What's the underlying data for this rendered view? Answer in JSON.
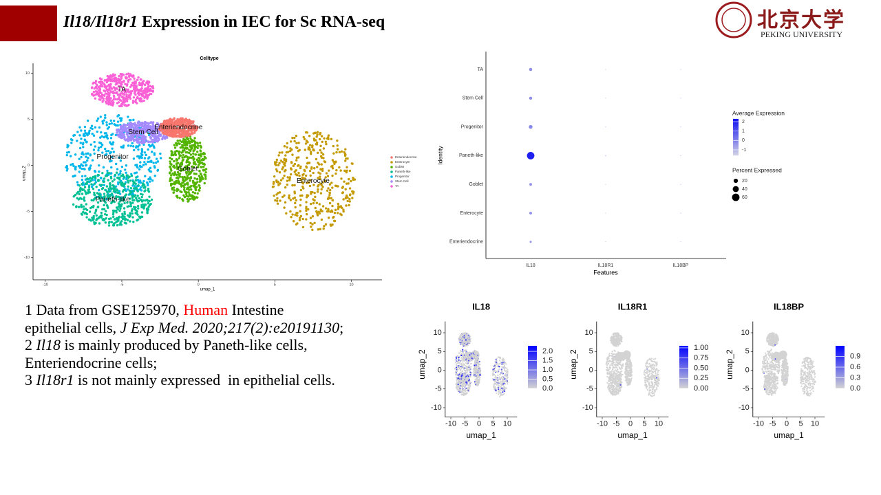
{
  "header": {
    "title": [
      {
        "text": "Il18",
        "italic": true
      },
      {
        "text": "/",
        "italic": true
      },
      {
        "text": "Il18r1",
        "italic": true
      },
      {
        "text": " Expression in IEC for Sc RNA-seq"
      }
    ],
    "logo_cn": "北京大学",
    "logo_en": "PEKING UNIVERSITY"
  },
  "notes": [
    [
      {
        "text": "1 Data from GSE125970, "
      },
      {
        "text": "Human",
        "color": "#ff0000"
      },
      {
        "text": " Intestine"
      }
    ],
    [
      {
        "text": "epithelial cells, "
      },
      {
        "text": "J Exp Med. 2020;217(2):e20191130",
        "italic": true
      },
      {
        "text": ";"
      }
    ],
    [
      {
        "text": "2 "
      },
      {
        "text": "Il18",
        "italic": true
      },
      {
        "text": " is mainly produced by Paneth-like cells,"
      }
    ],
    [
      {
        "text": "Enteriendocrine cells;"
      }
    ],
    [
      {
        "text": "3 "
      },
      {
        "text": "Il18r1",
        "italic": true
      },
      {
        "text": " is not mainly expressed  in epithelial cells."
      }
    ]
  ],
  "chart_data": [
    {
      "type": "umap",
      "title": "Celltype",
      "x_label": "umap_1",
      "y_label": "umap_2",
      "xlim": [
        -10.8,
        12.0
      ],
      "ylim": [
        -12.4,
        10.7
      ],
      "xticks": [
        -10,
        -5,
        0,
        5,
        10
      ],
      "yticks": [
        10,
        5,
        0,
        -5,
        -10
      ],
      "series": [
        {
          "name": "Enteriendocrine",
          "color": "#f8766d",
          "x": [
            -1.3
          ],
          "y": [
            4.1
          ]
        },
        {
          "name": "Enterocyte",
          "color": "#c49a00",
          "x": [
            7.5
          ],
          "y": [
            -1.7
          ]
        },
        {
          "name": "Goblet",
          "color": "#53b400",
          "x": [
            -0.7
          ],
          "y": [
            -0.4
          ]
        },
        {
          "name": "Paneth-like",
          "color": "#00c094",
          "x": [
            -5.6
          ],
          "y": [
            -3.7
          ]
        },
        {
          "name": "Progenitor",
          "color": "#00b6eb",
          "x": [
            -5.6
          ],
          "y": [
            0.9
          ]
        },
        {
          "name": "Stem Cell",
          "color": "#a58aff",
          "x": [
            -3.6
          ],
          "y": [
            3.6
          ]
        },
        {
          "name": "TA",
          "color": "#fb61d7",
          "x": [
            -5.0
          ],
          "y": [
            8.2
          ]
        }
      ]
    },
    {
      "type": "dotplot",
      "x_label": "Features",
      "y_label": "Identity",
      "categories": [
        "IL18",
        "IL18R1",
        "IL18BP"
      ],
      "identities": [
        "TA",
        "Stem Cell",
        "Progenitor",
        "Paneth-like",
        "Goblet",
        "Enterocyte",
        "Enteriendocrine"
      ],
      "avg_expression": [
        [
          -0.2,
          -0.4,
          -0.4
        ],
        [
          -0.2,
          -0.4,
          -0.4
        ],
        [
          -0.1,
          -0.4,
          -0.4
        ],
        [
          2.0,
          -0.4,
          -0.4
        ],
        [
          -0.3,
          -0.4,
          -0.4
        ],
        [
          -0.3,
          -0.4,
          -0.4
        ],
        [
          -0.4,
          -0.4,
          -0.4
        ]
      ],
      "pct_expressed": [
        [
          10,
          0.5,
          0.5
        ],
        [
          10,
          0.5,
          0.5
        ],
        [
          15,
          0.5,
          0.5
        ],
        [
          60,
          0.8,
          0.5
        ],
        [
          8,
          0.5,
          0.5
        ],
        [
          8,
          0.5,
          0.5
        ],
        [
          5,
          0.5,
          0.5
        ]
      ],
      "color_title": "Average Expression",
      "color_lim": [
        -1.6,
        2.3
      ],
      "color_ticks": [
        2,
        1,
        0,
        -1
      ],
      "size_title": "Percent Expressed",
      "size_ticks": [
        20,
        40,
        60
      ],
      "low_color": "#d3d3e6",
      "high_color": "#1010f0"
    },
    {
      "type": "feature",
      "title": "IL18",
      "x_label": "umap_1",
      "y_label": "umap_2",
      "xlim": [
        -12,
        13.5
      ],
      "ylim": [
        -12.5,
        13
      ],
      "xticks": [
        -10,
        -5,
        0,
        5,
        10
      ],
      "yticks": [
        10,
        5,
        0,
        -5,
        -10
      ],
      "color_lim": [
        0,
        2.3
      ],
      "color_ticks": [
        {
          "value": 2,
          "label": "2.0"
        },
        {
          "value": 1.5,
          "label": "1.5"
        },
        {
          "value": 1,
          "label": "1.0"
        },
        {
          "value": 0.5,
          "label": "0.5"
        },
        {
          "value": 0,
          "label": "0.0"
        }
      ],
      "low_color": "#d3d3d3",
      "high_color": "#0000ff"
    },
    {
      "type": "feature",
      "title": "IL18R1",
      "x_label": "umap_1",
      "y_label": "umap_2",
      "xlim": [
        -12,
        13.5
      ],
      "ylim": [
        -12.5,
        13
      ],
      "xticks": [
        -10,
        -5,
        0,
        5,
        10
      ],
      "yticks": [
        10,
        5,
        0,
        -5,
        -10
      ],
      "color_lim": [
        0,
        1.05
      ],
      "color_ticks": [
        {
          "value": 1,
          "label": "1.00"
        },
        {
          "value": 0.75,
          "label": "0.75"
        },
        {
          "value": 0.5,
          "label": "0.50"
        },
        {
          "value": 0.25,
          "label": "0.25"
        },
        {
          "value": 0,
          "label": "0.00"
        }
      ],
      "low_color": "#d3d3d3",
      "high_color": "#0000ff"
    },
    {
      "type": "feature",
      "title": "IL18BP",
      "x_label": "umap_1",
      "y_label": "umap_2",
      "xlim": [
        -12,
        13.5
      ],
      "ylim": [
        -12.5,
        13
      ],
      "xticks": [
        -10,
        -5,
        0,
        5,
        10
      ],
      "yticks": [
        10,
        5,
        0,
        -5,
        -10
      ],
      "color_lim": [
        0,
        1.2
      ],
      "color_ticks": [
        {
          "value": 0.9,
          "label": "0.9"
        },
        {
          "value": 0.6,
          "label": "0.6"
        },
        {
          "value": 0.3,
          "label": "0.3"
        },
        {
          "value": 0,
          "label": "0.0"
        }
      ],
      "low_color": "#d3d3d3",
      "high_color": "#0000ff"
    }
  ]
}
